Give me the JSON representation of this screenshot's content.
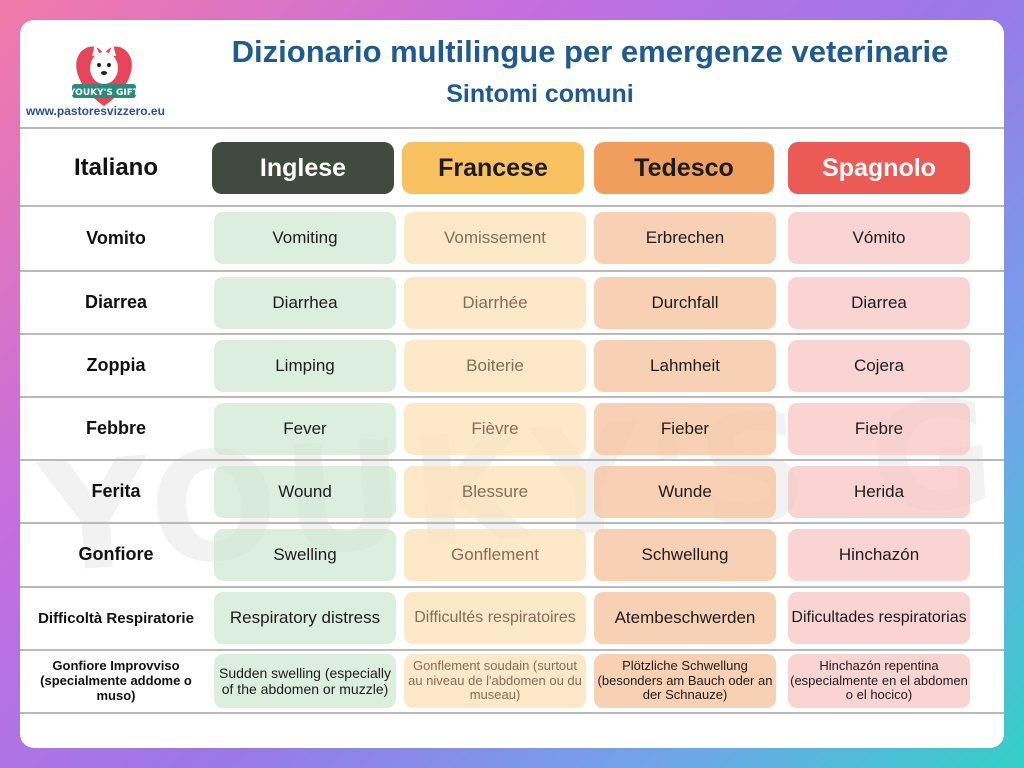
{
  "header": {
    "title": "Dizionario multilingue per emergenze veterinarie",
    "subtitle": "Sintomi comuni",
    "website": "www.pastoresvizzero.eu",
    "logo_text": "YOUKY'S GIFT",
    "watermark_text": "YOUKY'S GIFT"
  },
  "columns": [
    "Italiano",
    "Inglese",
    "Francese",
    "Tedesco",
    "Spagnolo"
  ],
  "rows": [
    {
      "it": "Vomito",
      "en": "Vomiting",
      "fr": "Vomissement",
      "de": "Erbrechen",
      "es": "Vómito"
    },
    {
      "it": "Diarrea",
      "en": "Diarrhea",
      "fr": "Diarrhée",
      "de": "Durchfall",
      "es": "Diarrea"
    },
    {
      "it": "Zoppia",
      "en": "Limping",
      "fr": "Boiterie",
      "de": "Lahmheit",
      "es": "Cojera"
    },
    {
      "it": "Febbre",
      "en": "Fever",
      "fr": "Fièvre",
      "de": "Fieber",
      "es": "Fiebre"
    },
    {
      "it": "Ferita",
      "en": "Wound",
      "fr": "Blessure",
      "de": "Wunde",
      "es": "Herida"
    },
    {
      "it": "Gonfiore",
      "en": "Swelling",
      "fr": "Gonflement",
      "de": "Schwellung",
      "es": "Hinchazón"
    },
    {
      "it": "Difficoltà Respiratorie",
      "en": "Respiratory distress",
      "fr": "Difficultés respiratoires",
      "de": "Atembeschwerden",
      "es": "Dificultades respiratorias"
    },
    {
      "it": "Gonfiore Improvviso (specialmente addome o muso)",
      "en": "Sudden swelling (especially of the abdomen or muzzle)",
      "fr": "Gonflement soudain (surtout au niveau de l'abdomen ou du museau)",
      "de": "Plötzliche Schwellung (besonders am Bauch oder an der Schnauze)",
      "es": "Hinchazón repentina (especialmente en el abdomen o el hocico)"
    }
  ],
  "colors": {
    "title": "#1f5a92",
    "inglese_header": "#414a40",
    "francese_header": "#f8c15f",
    "tedesco_header": "#ef9e5c",
    "spagnolo_header": "#ec5a55"
  }
}
